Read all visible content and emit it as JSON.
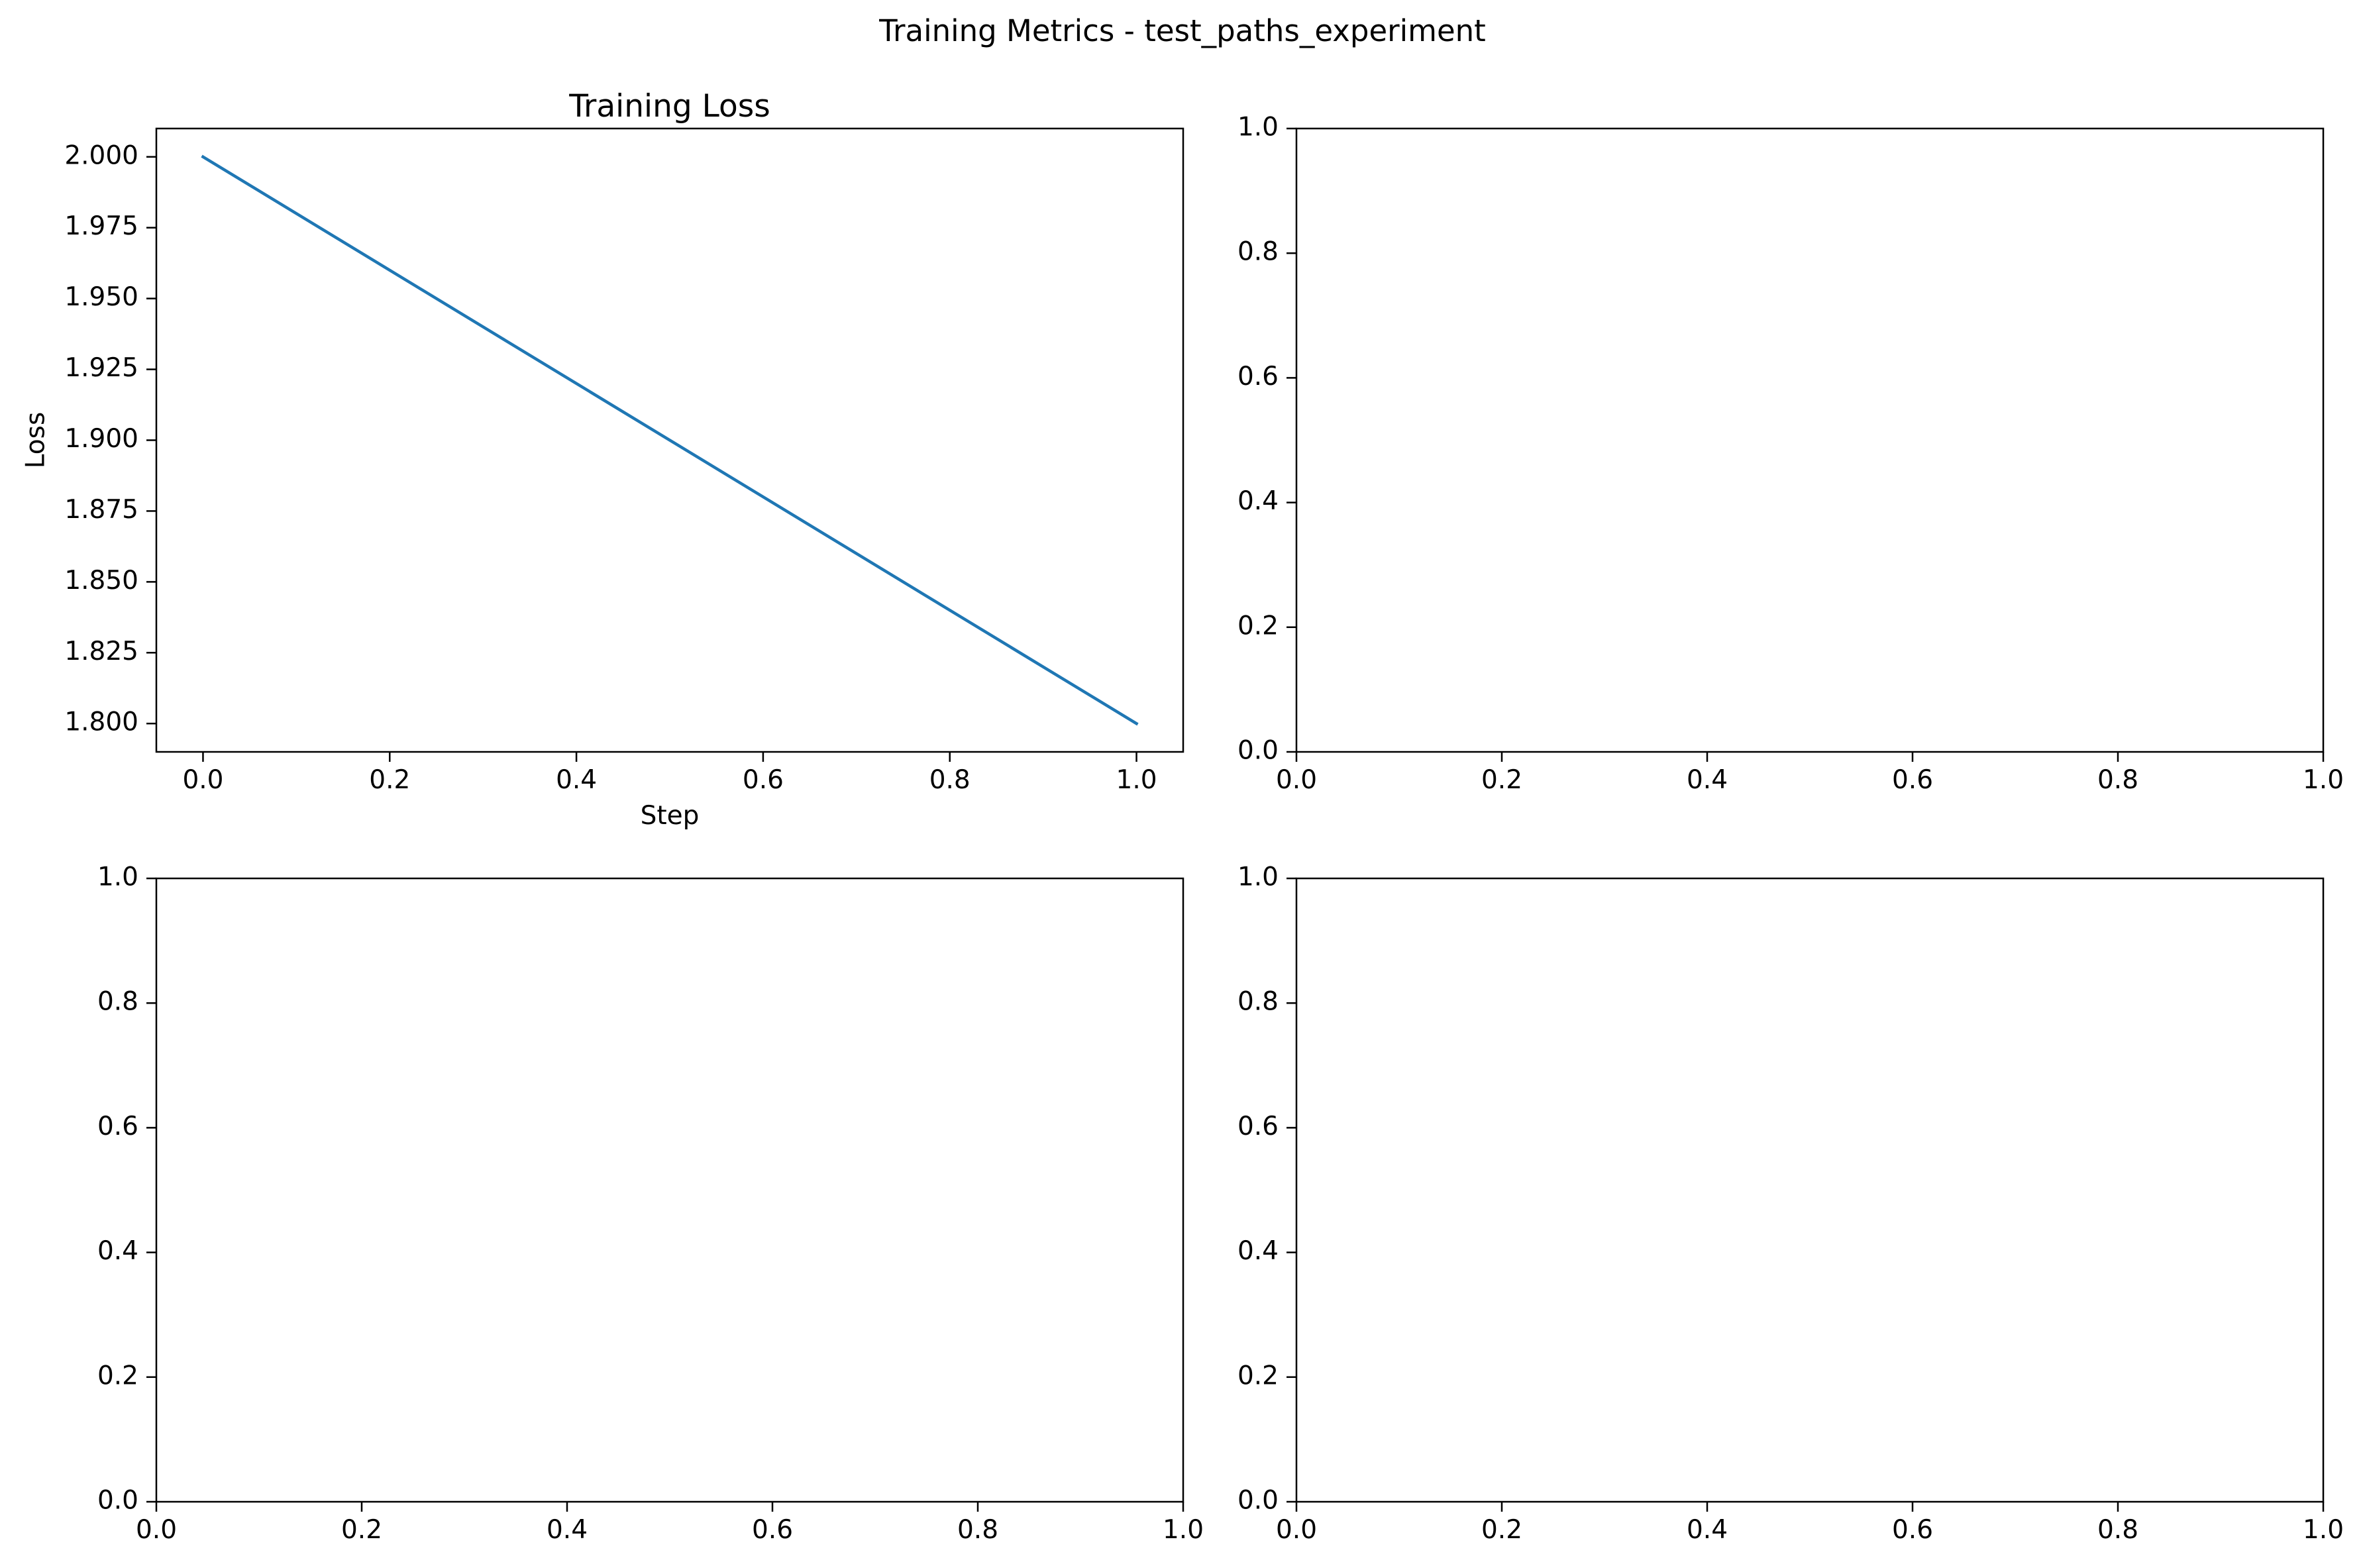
{
  "figure": {
    "suptitle": "Training Metrics - test_paths_experiment"
  },
  "chart_data": [
    {
      "type": "line",
      "title": "Training Loss",
      "xlabel": "Step",
      "ylabel": "Loss",
      "xlim": [
        -0.05,
        1.05
      ],
      "ylim": [
        1.79,
        2.01
      ],
      "xticks": [
        0.0,
        0.2,
        0.4,
        0.6,
        0.8,
        1.0
      ],
      "xtick_labels": [
        "0.0",
        "0.2",
        "0.4",
        "0.6",
        "0.8",
        "1.0"
      ],
      "yticks": [
        1.8,
        1.825,
        1.85,
        1.875,
        1.9,
        1.925,
        1.95,
        1.975,
        2.0
      ],
      "ytick_labels": [
        "1.800",
        "1.825",
        "1.850",
        "1.875",
        "1.900",
        "1.925",
        "1.950",
        "1.975",
        "2.000"
      ],
      "grid": false,
      "series": [
        {
          "x": [
            0,
            1
          ],
          "y": [
            2.0,
            1.8
          ],
          "color": "#1f77b4"
        }
      ]
    },
    {
      "type": "line",
      "title": "",
      "xlabel": "",
      "ylabel": "",
      "xlim": [
        0,
        1
      ],
      "ylim": [
        0,
        1
      ],
      "xticks": [
        0.0,
        0.2,
        0.4,
        0.6,
        0.8,
        1.0
      ],
      "xtick_labels": [
        "0.0",
        "0.2",
        "0.4",
        "0.6",
        "0.8",
        "1.0"
      ],
      "yticks": [
        0.0,
        0.2,
        0.4,
        0.6,
        0.8,
        1.0
      ],
      "ytick_labels": [
        "0.0",
        "0.2",
        "0.4",
        "0.6",
        "0.8",
        "1.0"
      ],
      "grid": false,
      "series": []
    },
    {
      "type": "line",
      "title": "",
      "xlabel": "",
      "ylabel": "",
      "xlim": [
        0,
        1
      ],
      "ylim": [
        0,
        1
      ],
      "xticks": [
        0.0,
        0.2,
        0.4,
        0.6,
        0.8,
        1.0
      ],
      "xtick_labels": [
        "0.0",
        "0.2",
        "0.4",
        "0.6",
        "0.8",
        "1.0"
      ],
      "yticks": [
        0.0,
        0.2,
        0.4,
        0.6,
        0.8,
        1.0
      ],
      "ytick_labels": [
        "0.0",
        "0.2",
        "0.4",
        "0.6",
        "0.8",
        "1.0"
      ],
      "grid": false,
      "series": []
    },
    {
      "type": "line",
      "title": "",
      "xlabel": "",
      "ylabel": "",
      "xlim": [
        0,
        1
      ],
      "ylim": [
        0,
        1
      ],
      "xticks": [
        0.0,
        0.2,
        0.4,
        0.6,
        0.8,
        1.0
      ],
      "xtick_labels": [
        "0.0",
        "0.2",
        "0.4",
        "0.6",
        "0.8",
        "1.0"
      ],
      "yticks": [
        0.0,
        0.2,
        0.4,
        0.6,
        0.8,
        1.0
      ],
      "ytick_labels": [
        "0.0",
        "0.2",
        "0.4",
        "0.6",
        "0.8",
        "1.0"
      ],
      "grid": false,
      "series": []
    }
  ]
}
